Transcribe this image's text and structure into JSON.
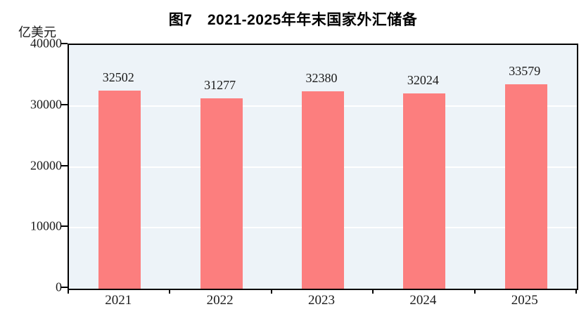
{
  "chart_data": {
    "type": "bar",
    "title": "图7　2021-2025年年末国家外汇储备",
    "ylabel": "亿美元",
    "categories": [
      "2021",
      "2022",
      "2023",
      "2024",
      "2025"
    ],
    "values": [
      32502,
      31277,
      32380,
      32024,
      33579
    ],
    "ylim": [
      0,
      40000
    ],
    "yticks": [
      0,
      10000,
      20000,
      30000,
      40000
    ],
    "grid": "horizontal",
    "legend_position": "none",
    "colors": {
      "bar": "#FC7E7E",
      "plot_background": "#EDF3F8",
      "gridline": "#FFFFFF",
      "axis_border": "#000000",
      "text": "#1A1A1A"
    }
  }
}
